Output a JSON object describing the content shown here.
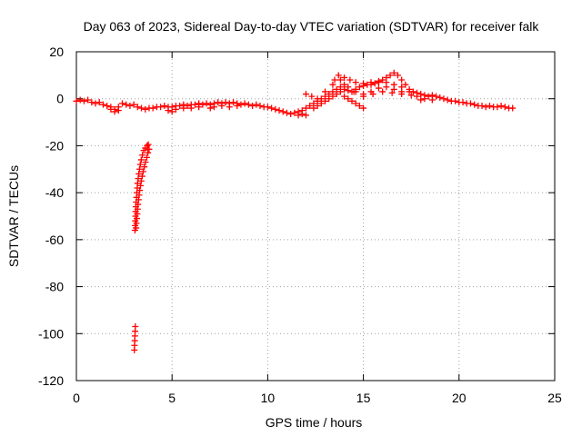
{
  "chart_data": {
    "type": "scatter",
    "title": "Day 063 of 2023, Sidereal Day-to-day VTEC variation (SDTVAR) for receiver falk",
    "xlabel": "GPS time / hours",
    "ylabel": "SDTVAR / TECUs",
    "xlim": [
      0,
      25
    ],
    "ylim": [
      -120,
      20
    ],
    "xticks": [
      0,
      5,
      10,
      15,
      20,
      25
    ],
    "yticks": [
      -120,
      -100,
      -80,
      -60,
      -40,
      -20,
      0,
      20
    ],
    "grid": true,
    "series": [
      {
        "name": "SDTVAR",
        "color": "#ff0000",
        "marker": "plus",
        "points": [
          [
            0.0,
            -1.0
          ],
          [
            0.2,
            -0.5
          ],
          [
            0.4,
            -1.0
          ],
          [
            0.6,
            -0.5
          ],
          [
            0.8,
            -1.5
          ],
          [
            1.0,
            -2.0
          ],
          [
            1.2,
            -1.5
          ],
          [
            1.4,
            -2.5
          ],
          [
            1.6,
            -3.0
          ],
          [
            1.8,
            -3.5
          ],
          [
            2.0,
            -4.5
          ],
          [
            2.2,
            -3.5
          ],
          [
            2.4,
            -2.0
          ],
          [
            2.6,
            -2.5
          ],
          [
            2.8,
            -3.0
          ],
          [
            3.0,
            -2.5
          ],
          [
            3.2,
            -3.5
          ],
          [
            3.4,
            -4.0
          ],
          [
            3.6,
            -4.5
          ],
          [
            3.8,
            -4.0
          ],
          [
            4.0,
            -4.0
          ],
          [
            4.2,
            -3.5
          ],
          [
            4.4,
            -3.5
          ],
          [
            4.6,
            -3.0
          ],
          [
            4.8,
            -3.5
          ],
          [
            5.0,
            -3.5
          ],
          [
            5.2,
            -3.0
          ],
          [
            5.4,
            -3.0
          ],
          [
            5.6,
            -2.5
          ],
          [
            5.8,
            -3.0
          ],
          [
            6.0,
            -2.5
          ],
          [
            6.2,
            -2.5
          ],
          [
            6.4,
            -2.0
          ],
          [
            6.6,
            -2.5
          ],
          [
            6.8,
            -2.0
          ],
          [
            7.0,
            -2.5
          ],
          [
            7.2,
            -2.0
          ],
          [
            7.4,
            -1.5
          ],
          [
            7.6,
            -2.0
          ],
          [
            7.8,
            -1.5
          ],
          [
            8.0,
            -2.0
          ],
          [
            8.2,
            -1.5
          ],
          [
            8.4,
            -2.0
          ],
          [
            8.6,
            -2.5
          ],
          [
            8.8,
            -2.0
          ],
          [
            9.0,
            -2.5
          ],
          [
            9.2,
            -3.0
          ],
          [
            9.4,
            -2.5
          ],
          [
            9.6,
            -3.0
          ],
          [
            9.8,
            -3.5
          ],
          [
            10.0,
            -3.5
          ],
          [
            10.2,
            -4.0
          ],
          [
            10.4,
            -4.5
          ],
          [
            10.6,
            -5.0
          ],
          [
            10.8,
            -5.5
          ],
          [
            11.0,
            -6.0
          ],
          [
            11.2,
            -6.5
          ],
          [
            11.4,
            -6.0
          ],
          [
            11.6,
            -5.5
          ],
          [
            11.8,
            -5.0
          ],
          [
            12.0,
            -4.0
          ],
          [
            12.2,
            -3.0
          ],
          [
            12.4,
            -2.0
          ],
          [
            12.6,
            -1.0
          ],
          [
            12.8,
            0.0
          ],
          [
            13.0,
            1.0
          ],
          [
            13.2,
            2.0
          ],
          [
            13.4,
            3.0
          ],
          [
            13.6,
            4.0
          ],
          [
            13.8,
            5.0
          ],
          [
            14.0,
            4.0
          ],
          [
            14.2,
            3.5
          ],
          [
            14.4,
            3.0
          ],
          [
            14.6,
            4.0
          ],
          [
            14.8,
            5.0
          ],
          [
            15.0,
            5.5
          ],
          [
            15.2,
            6.0
          ],
          [
            15.4,
            6.0
          ],
          [
            15.6,
            6.5
          ],
          [
            15.8,
            7.0
          ],
          [
            16.0,
            8.0
          ],
          [
            16.2,
            9.0
          ],
          [
            16.4,
            10.0
          ],
          [
            16.6,
            11.0
          ],
          [
            16.8,
            10.0
          ],
          [
            17.0,
            8.0
          ],
          [
            17.2,
            6.0
          ],
          [
            17.4,
            4.0
          ],
          [
            17.6,
            3.0
          ],
          [
            17.8,
            2.5
          ],
          [
            18.0,
            2.0
          ],
          [
            18.2,
            1.5
          ],
          [
            18.4,
            1.0
          ],
          [
            18.6,
            1.5
          ],
          [
            18.8,
            1.0
          ],
          [
            19.0,
            0.5
          ],
          [
            19.2,
            0.0
          ],
          [
            19.4,
            -0.5
          ],
          [
            19.6,
            -1.0
          ],
          [
            19.8,
            -1.0
          ],
          [
            20.0,
            -1.5
          ],
          [
            20.2,
            -1.5
          ],
          [
            20.4,
            -2.0
          ],
          [
            20.6,
            -2.0
          ],
          [
            20.8,
            -2.5
          ],
          [
            21.0,
            -3.0
          ],
          [
            21.2,
            -3.0
          ],
          [
            21.4,
            -3.5
          ],
          [
            21.6,
            -3.0
          ],
          [
            21.8,
            -3.5
          ],
          [
            22.0,
            -3.5
          ],
          [
            22.2,
            -3.0
          ],
          [
            22.4,
            -3.5
          ],
          [
            22.6,
            -4.0
          ],
          [
            22.8,
            -4.0
          ],
          [
            11.6,
            -7.0
          ],
          [
            11.8,
            -6.5
          ],
          [
            12.0,
            -7.0
          ],
          [
            12.4,
            -4.0
          ],
          [
            12.8,
            -2.0
          ],
          [
            13.2,
            0.0
          ],
          [
            13.6,
            2.0
          ],
          [
            14.0,
            1.0
          ],
          [
            14.4,
            -1.0
          ],
          [
            14.8,
            -3.0
          ],
          [
            15.0,
            -4.0
          ],
          [
            12.6,
            -3.0
          ],
          [
            13.0,
            -1.0
          ],
          [
            13.4,
            1.0
          ],
          [
            13.8,
            3.0
          ],
          [
            14.2,
            0.0
          ],
          [
            14.6,
            -2.0
          ],
          [
            12.0,
            2.0
          ],
          [
            12.3,
            1.0
          ],
          [
            12.6,
            0.0
          ],
          [
            13.0,
            3.0
          ],
          [
            13.4,
            6.0
          ],
          [
            13.8,
            8.0
          ],
          [
            14.2,
            5.0
          ],
          [
            14.6,
            3.0
          ],
          [
            15.0,
            2.0
          ],
          [
            15.4,
            3.0
          ],
          [
            15.8,
            4.5
          ],
          [
            16.2,
            5.0
          ],
          [
            16.6,
            6.0
          ],
          [
            17.0,
            5.0
          ],
          [
            13.5,
            8.0
          ],
          [
            13.7,
            10.0
          ],
          [
            14.0,
            9.0
          ],
          [
            14.3,
            8.0
          ],
          [
            14.6,
            7.0
          ],
          [
            15.0,
            6.5
          ],
          [
            15.4,
            7.0
          ],
          [
            15.8,
            7.5
          ],
          [
            16.2,
            7.0
          ],
          [
            16.6,
            4.0
          ],
          [
            17.0,
            3.0
          ],
          [
            17.4,
            3.0
          ],
          [
            17.8,
            1.0
          ],
          [
            18.2,
            0.0
          ],
          [
            18.6,
            -0.5
          ],
          [
            14.0,
            6.0
          ],
          [
            14.5,
            3.0
          ],
          [
            15.0,
            1.0
          ],
          [
            15.5,
            2.0
          ],
          [
            16.0,
            3.0
          ],
          [
            16.5,
            2.5
          ],
          [
            17.0,
            2.0
          ],
          [
            17.5,
            1.5
          ],
          [
            18.0,
            -0.5
          ],
          [
            1.8,
            -4.5
          ],
          [
            2.0,
            -5.5
          ],
          [
            2.2,
            -5.0
          ],
          [
            4.8,
            -5.0
          ],
          [
            5.0,
            -5.5
          ],
          [
            5.2,
            -4.5
          ],
          [
            5.6,
            -4.0
          ],
          [
            6.0,
            -4.0
          ],
          [
            6.4,
            -3.5
          ],
          [
            7.0,
            -4.0
          ],
          [
            7.2,
            -3.5
          ],
          [
            7.6,
            -3.0
          ],
          [
            8.0,
            -3.5
          ],
          [
            8.4,
            -3.0
          ],
          [
            3.06,
            -56
          ],
          [
            3.07,
            -54
          ],
          [
            3.08,
            -52
          ],
          [
            3.09,
            -50
          ],
          [
            3.1,
            -48
          ],
          [
            3.11,
            -46
          ],
          [
            3.12,
            -44
          ],
          [
            3.14,
            -42
          ],
          [
            3.16,
            -40
          ],
          [
            3.18,
            -38
          ],
          [
            3.2,
            -36
          ],
          [
            3.23,
            -34
          ],
          [
            3.26,
            -32
          ],
          [
            3.3,
            -30
          ],
          [
            3.34,
            -28
          ],
          [
            3.39,
            -26
          ],
          [
            3.45,
            -24
          ],
          [
            3.52,
            -22
          ],
          [
            3.6,
            -21
          ],
          [
            3.7,
            -20
          ],
          [
            3.76,
            -19.5
          ],
          [
            3.12,
            -55
          ],
          [
            3.14,
            -53
          ],
          [
            3.16,
            -51
          ],
          [
            3.18,
            -49
          ],
          [
            3.2,
            -47
          ],
          [
            3.22,
            -45
          ],
          [
            3.25,
            -43
          ],
          [
            3.28,
            -41
          ],
          [
            3.31,
            -39
          ],
          [
            3.35,
            -37
          ],
          [
            3.39,
            -35
          ],
          [
            3.44,
            -33
          ],
          [
            3.49,
            -31
          ],
          [
            3.55,
            -29
          ],
          [
            3.61,
            -27
          ],
          [
            3.68,
            -25
          ],
          [
            3.74,
            -23
          ],
          [
            3.8,
            -21.5
          ],
          [
            3.03,
            -107
          ],
          [
            3.04,
            -105
          ],
          [
            3.05,
            -103
          ],
          [
            3.06,
            -101
          ],
          [
            3.07,
            -99
          ],
          [
            3.08,
            -97
          ]
        ]
      }
    ]
  }
}
